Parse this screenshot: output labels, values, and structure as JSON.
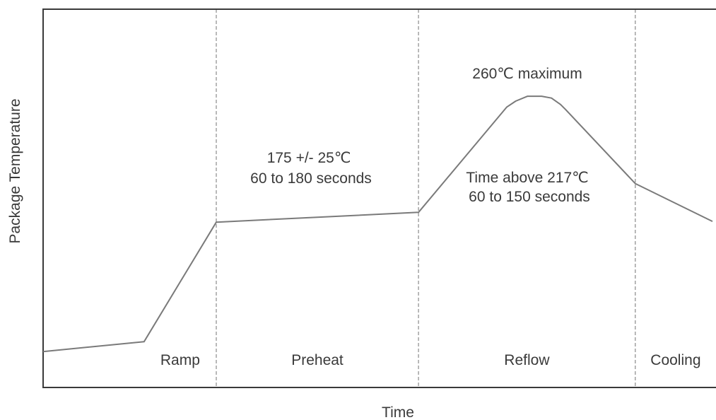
{
  "chart_data": {
    "type": "line",
    "title": "",
    "xlabel": "Time",
    "ylabel": "Package Temperature",
    "grid": false,
    "legend": "none",
    "phases": [
      {
        "name": "Ramp",
        "start": 0.1508,
        "end": 0.2587
      },
      {
        "name": "Preheat",
        "start": 0.2587,
        "end": 0.5608
      },
      {
        "name": "Reflow",
        "start": 0.5608,
        "end": 0.8847
      },
      {
        "name": "Cooling",
        "start": 0.8847,
        "end": 1.0
      }
    ],
    "series": [
      {
        "x": [
          0.0,
          0.1508,
          0.2587,
          0.5608,
          0.6925,
          0.706,
          0.7238,
          0.7448,
          0.7595,
          0.7731,
          0.7805,
          0.8847,
          1.0
        ],
        "y": [
          0.095,
          0.121,
          0.437,
          0.463,
          0.741,
          0.757,
          0.77,
          0.77,
          0.765,
          0.748,
          0.735,
          0.539,
          0.439
        ]
      }
    ],
    "annotations": [
      {
        "lines": [
          "175 +/- 25℃",
          "60 to 180 seconds"
        ]
      },
      {
        "lines": [
          "260℃ maximum"
        ]
      },
      {
        "lines": [
          "Time above 217℃",
          "60 to 150 seconds"
        ]
      }
    ],
    "colors": {
      "curve": "#7a7a7a",
      "axis": "#3a3a3a",
      "divider": "#8a8a8a",
      "text": "#3a3a3a"
    }
  }
}
